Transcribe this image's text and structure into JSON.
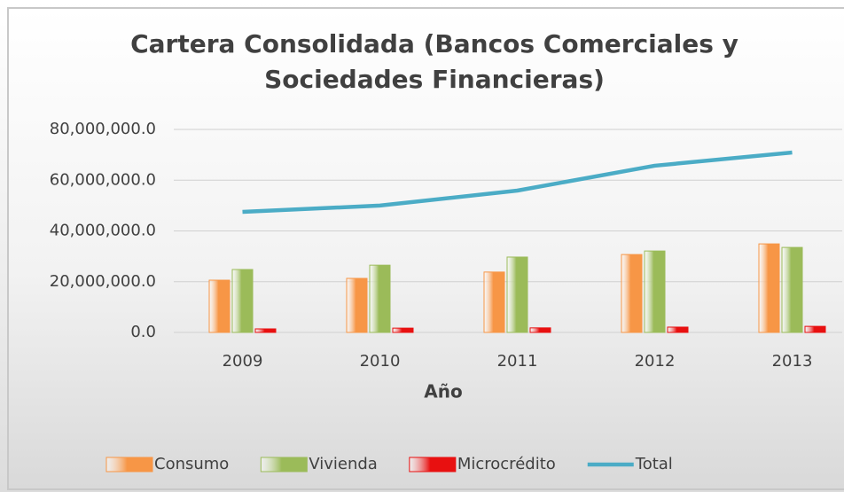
{
  "chart_data": {
    "type": "bar",
    "title": "Cartera Consolidada (Bancos Comerciales y Sociedades Financieras)",
    "x_label": "Año",
    "categories": [
      "2009",
      "2010",
      "2011",
      "2012",
      "2013"
    ],
    "series": [
      {
        "name": "Consumo",
        "type": "bar",
        "color": "#f79646",
        "values": [
          20600000,
          21300000,
          23800000,
          30700000,
          34900000
        ]
      },
      {
        "name": "Vivienda",
        "type": "bar",
        "color": "#9bbb59",
        "values": [
          24800000,
          26500000,
          29700000,
          32100000,
          33500000
        ]
      },
      {
        "name": "Microcrédito",
        "type": "bar",
        "color": "#e81010",
        "values": [
          1400000,
          1700000,
          1800000,
          2100000,
          2400000
        ]
      },
      {
        "name": "Total",
        "type": "line",
        "color": "#4bacc6",
        "values": [
          47500000,
          50000000,
          55900000,
          65700000,
          70900000
        ]
      }
    ],
    "ylim": [
      0,
      80000000
    ],
    "yticks": [
      {
        "value": 0,
        "label": "0.0"
      },
      {
        "value": 20000000,
        "label": "20,000,000.0"
      },
      {
        "value": 40000000,
        "label": "40,000,000.0"
      },
      {
        "value": 60000000,
        "label": "60,000,000.0"
      },
      {
        "value": 80000000,
        "label": "80,000,000.0"
      }
    ],
    "grid": true,
    "legend": "bottom"
  }
}
